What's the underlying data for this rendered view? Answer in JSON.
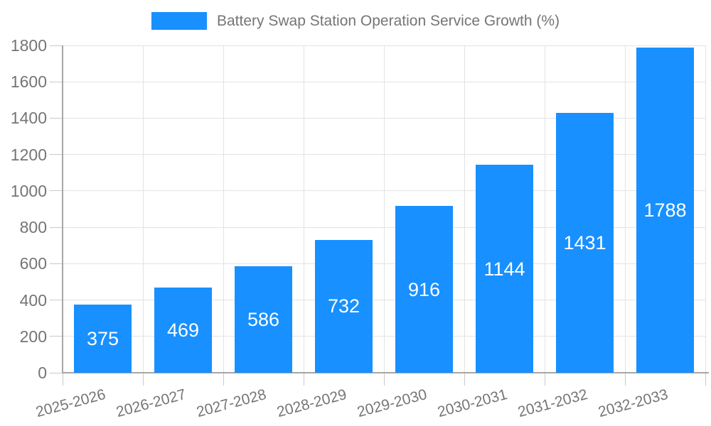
{
  "chart_data": {
    "type": "bar",
    "title": "Battery Swap Station Operation Service Growth (%)",
    "categories": [
      "2025-2026",
      "2026-2027",
      "2027-2028",
      "2028-2029",
      "2029-2030",
      "2030-2031",
      "2031-2032",
      "2032-2033"
    ],
    "series": [
      {
        "name": "Battery Swap Station Operation Service Growth (%)",
        "values": [
          375,
          469,
          586,
          732,
          916,
          1144,
          1431,
          1788
        ]
      }
    ],
    "value_labels_shown": true,
    "xlabel": "",
    "ylabel": "",
    "ylim": [
      0,
      1800
    ],
    "yticks": [
      0,
      200,
      400,
      600,
      800,
      1000,
      1200,
      1400,
      1600,
      1800
    ],
    "grid": true,
    "legend_position": "top-center",
    "x_label_rotation_deg": -15,
    "colors": {
      "bar": "#1890ff",
      "value_label": "#ffffff",
      "axis_line": "#a6a6a6",
      "tick_line": "#c9c9c9",
      "grid_line": "#e3e3e3",
      "axis_text": "#757575",
      "legend_text": "#757575",
      "background": "#ffffff"
    }
  }
}
